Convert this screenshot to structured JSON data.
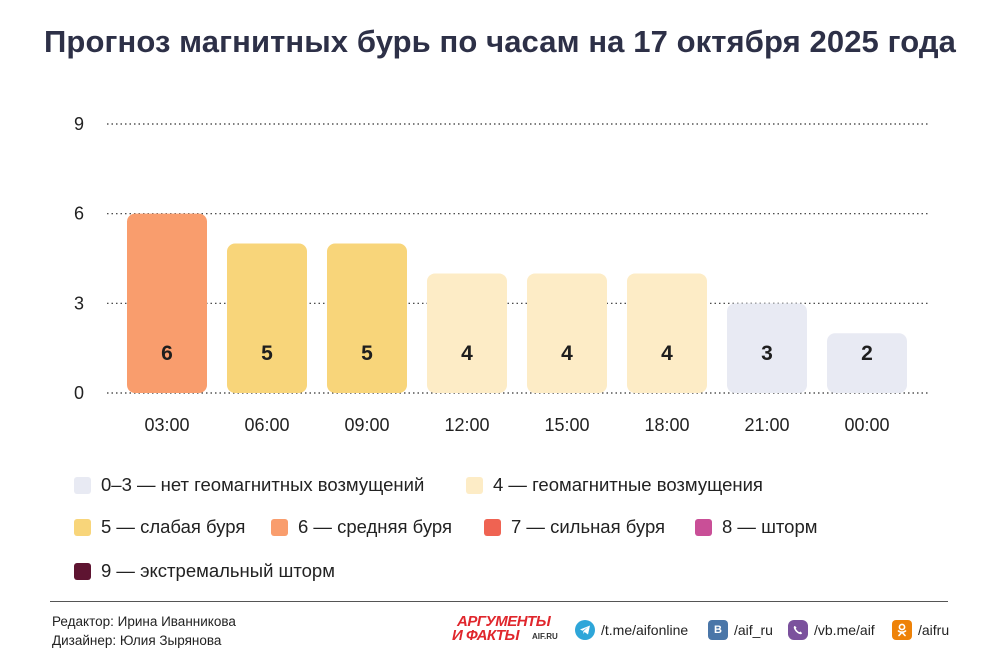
{
  "title": "Прогноз магнитных бурь по часам на 17 октября 2025 года",
  "chart_data": {
    "type": "bar",
    "categories": [
      "03:00",
      "06:00",
      "09:00",
      "12:00",
      "15:00",
      "18:00",
      "21:00",
      "00:00"
    ],
    "values": [
      6,
      5,
      5,
      4,
      4,
      4,
      3,
      2
    ],
    "bar_colors": [
      "#f99d6d",
      "#f8d57a",
      "#f8d57a",
      "#fdecc6",
      "#fdecc6",
      "#fdecc6",
      "#e8eaf3",
      "#e8eaf3"
    ],
    "yticks": [
      0,
      3,
      6,
      9
    ],
    "ylim": [
      0,
      9
    ],
    "grid": true,
    "grid_style": "dotted",
    "xlabel": "",
    "ylabel": "",
    "legend_position": "bottom"
  },
  "legend": [
    {
      "label": "0–3 — нет геомагнитных возмущений",
      "color": "#e8eaf3"
    },
    {
      "label": "4 — геомагнитные возмущения",
      "color": "#fdecc6"
    },
    {
      "label": "5 — слабая буря",
      "color": "#f8d57a"
    },
    {
      "label": "6 — средняя буря",
      "color": "#f99d6d"
    },
    {
      "label": "7 — сильная буря",
      "color": "#ef6352"
    },
    {
      "label": "8 — шторм",
      "color": "#c94f97"
    },
    {
      "label": "9 — экстремальный шторм",
      "color": "#5e1431"
    }
  ],
  "footer": {
    "editor": "Редактор: Ирина Иванникова",
    "designer": "Дизайнер: Юлия Зырянова",
    "logo_line1": "АРГУМЕНТЫ",
    "logo_line2": "И ФАКТЫ",
    "logo_line3": "AIF.RU",
    "social": [
      {
        "icon": "telegram-icon",
        "label": "/t.me/aifonline",
        "color": "#2ea6d9"
      },
      {
        "icon": "vk-icon",
        "label": "/aif_ru",
        "color": "#4a76a8"
      },
      {
        "icon": "viber-icon",
        "label": "/vb.me/aif",
        "color": "#7b519d"
      },
      {
        "icon": "ok-icon",
        "label": "/aifru",
        "color": "#ee8208"
      }
    ]
  }
}
